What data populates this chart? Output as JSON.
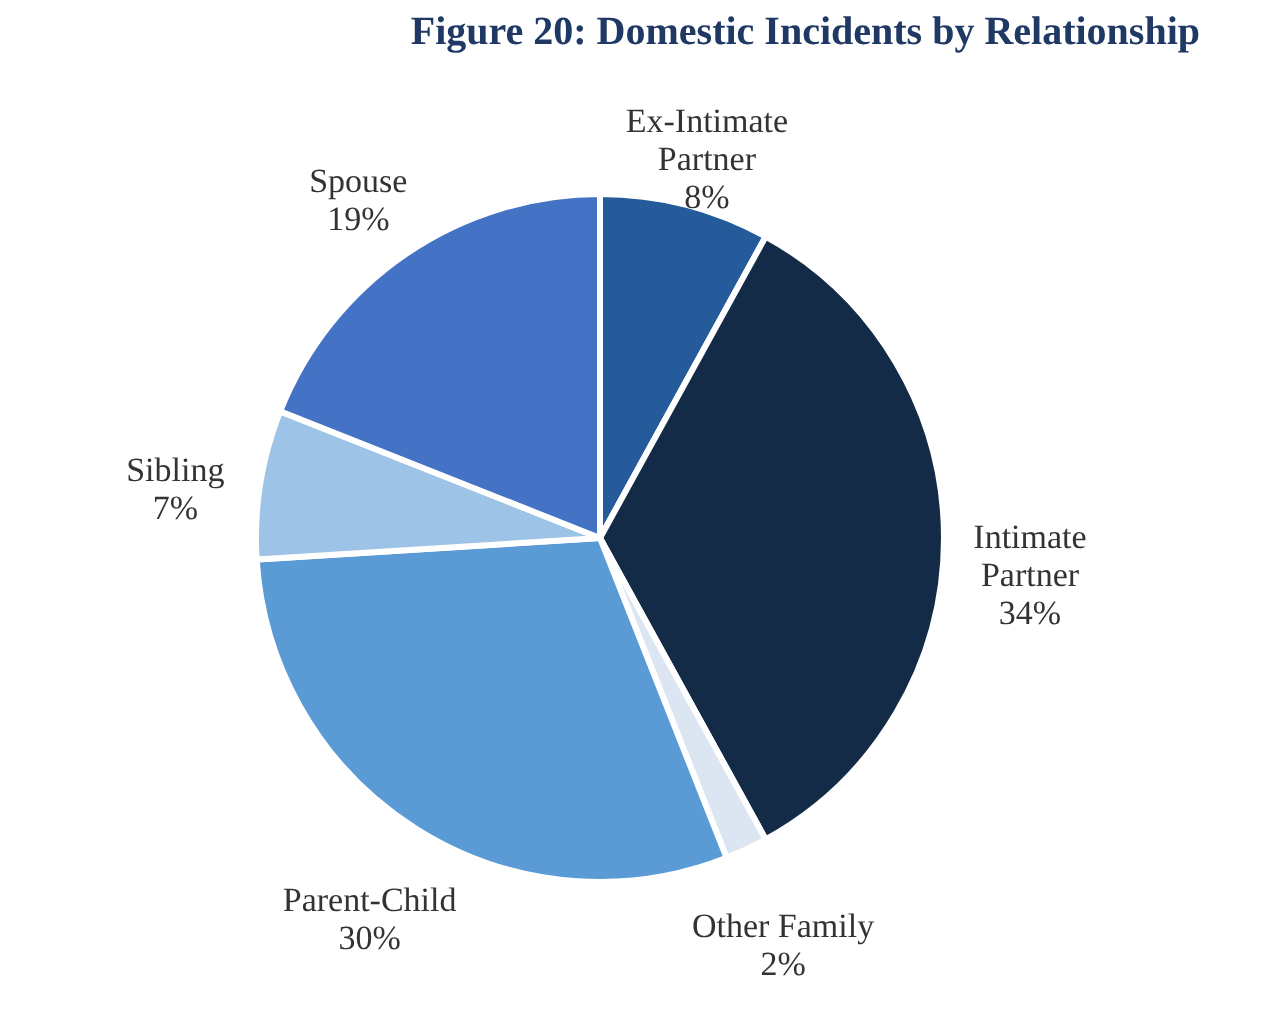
{
  "chart_data": {
    "type": "pie",
    "title": "Figure  20: Domestic Incidents by Relationship",
    "categories": [
      "Ex-Intimate Partner",
      "Intimate Partner",
      "Other Family",
      "Parent-Child",
      "Sibling",
      "Spouse"
    ],
    "values": [
      8,
      34,
      2,
      30,
      7,
      19
    ],
    "value_labels": [
      "8%",
      "34%",
      "2%",
      "30%",
      "7%",
      "19%"
    ],
    "colors": [
      "#255a9b",
      "#142b47",
      "#dce6f2",
      "#5b9bd5",
      "#9dc3e6",
      "#4472c4"
    ]
  }
}
